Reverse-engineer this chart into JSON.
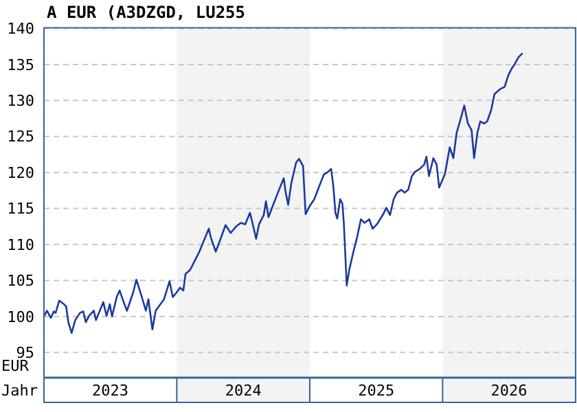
{
  "chart_data": {
    "type": "line",
    "title": "A EUR (A3DZGD, LU255",
    "xlabel": "Jahr",
    "ylabel": "EUR",
    "xlim": [
      "2023-01-01",
      "2027-01-01"
    ],
    "ylim": [
      91.5,
      140
    ],
    "xticks": [
      {
        "value": "2023-07-02",
        "label": "2023"
      },
      {
        "value": "2024-07-02",
        "label": "2024"
      },
      {
        "value": "2025-07-02",
        "label": "2025"
      },
      {
        "value": "2026-07-02",
        "label": "2026"
      }
    ],
    "yticks": [
      95,
      100,
      105,
      110,
      115,
      120,
      125,
      130,
      135,
      140
    ],
    "grid": "y",
    "bands": [
      {
        "axis": "x",
        "from": "2024-01-01",
        "to": "2025-01-01",
        "color": "#f3f3f3"
      },
      {
        "axis": "x",
        "from": "2026-01-01",
        "to": "2027-01-01",
        "color": "#f3f3f3"
      }
    ],
    "series": [
      {
        "color": "#1a3a9c",
        "x": [
          "2023-01-01",
          "2023-01-09",
          "2023-01-20",
          "2023-01-28",
          "2023-02-02",
          "2023-02-12",
          "2023-02-25",
          "2023-03-03",
          "2023-03-09",
          "2023-03-18",
          "2023-03-28",
          "2023-04-10",
          "2023-04-19",
          "2023-04-26",
          "2023-05-05",
          "2023-05-18",
          "2023-05-24",
          "2023-06-06",
          "2023-06-13",
          "2023-06-22",
          "2023-07-01",
          "2023-07-07",
          "2023-07-20",
          "2023-07-28",
          "2023-08-08",
          "2023-08-17",
          "2023-09-03",
          "2023-09-12",
          "2023-09-27",
          "2023-10-08",
          "2023-10-15",
          "2023-10-26",
          "2023-11-04",
          "2023-11-17",
          "2023-11-27",
          "2023-12-12",
          "2023-12-21",
          "2023-12-31",
          "2024-01-10",
          "2024-01-19",
          "2024-01-25",
          "2024-02-07",
          "2024-02-20",
          "2024-03-03",
          "2024-03-16",
          "2024-03-29",
          "2024-04-04",
          "2024-04-17",
          "2024-04-29",
          "2024-05-14",
          "2024-05-28",
          "2024-06-12",
          "2024-06-25",
          "2024-07-07",
          "2024-07-20",
          "2024-07-26",
          "2024-08-06",
          "2024-08-14",
          "2024-08-27",
          "2024-09-02",
          "2024-09-09",
          "2024-09-21",
          "2024-10-08",
          "2024-10-21",
          "2024-10-26",
          "2024-11-02",
          "2024-11-11",
          "2024-11-24",
          "2024-12-02",
          "2024-12-13",
          "2024-12-20",
          "2025-01-01",
          "2025-01-13",
          "2025-01-25",
          "2025-02-08",
          "2025-02-20",
          "2025-02-28",
          "2025-03-06",
          "2025-03-12",
          "2025-03-17",
          "2025-03-25",
          "2025-03-31",
          "2025-04-04",
          "2025-04-12",
          "2025-04-19",
          "2025-04-29",
          "2025-05-10",
          "2025-05-21",
          "2025-05-31",
          "2025-06-13",
          "2025-06-22",
          "2025-07-04",
          "2025-07-20",
          "2025-07-30",
          "2025-08-09",
          "2025-08-19",
          "2025-08-28",
          "2025-09-09",
          "2025-09-18",
          "2025-09-28",
          "2025-10-08",
          "2025-10-17",
          "2025-10-30",
          "2025-11-11",
          "2025-11-17",
          "2025-11-24",
          "2025-12-06",
          "2025-12-15",
          "2025-12-22",
          "2026-01-07",
          "2026-01-20",
          "2026-01-30",
          "2026-02-08",
          "2026-02-21",
          "2026-03-01",
          "2026-03-11",
          "2026-03-21",
          "2026-03-28",
          "2026-04-06",
          "2026-04-14",
          "2026-04-24",
          "2026-05-03",
          "2026-05-14",
          "2026-05-23",
          "2026-06-08",
          "2026-06-20",
          "2026-06-30",
          "2026-07-09",
          "2026-07-18",
          "2026-07-28",
          "2026-08-07"
        ],
        "values": [
          100.0,
          100.8,
          99.8,
          100.7,
          100.5,
          102.2,
          101.7,
          101.4,
          99.2,
          97.7,
          99.5,
          100.5,
          100.7,
          99.2,
          100.1,
          100.8,
          99.5,
          101.1,
          102.0,
          100.1,
          101.7,
          100.0,
          102.7,
          103.6,
          102.0,
          100.8,
          103.3,
          105.1,
          102.7,
          100.8,
          102.4,
          98.2,
          100.8,
          101.7,
          102.4,
          104.9,
          102.7,
          103.3,
          104.0,
          103.6,
          105.9,
          106.5,
          107.8,
          109.0,
          110.6,
          112.2,
          110.9,
          109.0,
          110.6,
          112.7,
          111.6,
          112.5,
          113.0,
          112.8,
          114.4,
          113.2,
          110.8,
          112.8,
          114.1,
          116.0,
          113.8,
          115.4,
          117.6,
          119.2,
          117.3,
          115.5,
          118.6,
          121.4,
          121.9,
          120.9,
          114.2,
          115.4,
          116.3,
          117.9,
          119.7,
          120.1,
          120.5,
          118.2,
          114.4,
          113.6,
          116.3,
          115.7,
          113.0,
          104.3,
          106.5,
          108.7,
          110.9,
          113.5,
          113.0,
          113.5,
          112.2,
          112.8,
          114.1,
          115.1,
          114.1,
          116.3,
          117.2,
          117.6,
          117.2,
          117.6,
          119.5,
          120.1,
          120.5,
          121.1,
          122.2,
          119.5,
          122.0,
          121.1,
          117.9,
          119.8,
          123.5,
          122.0,
          125.5,
          127.8,
          129.3,
          126.8,
          125.9,
          122.0,
          125.5,
          127.1,
          126.8,
          127.1,
          128.7,
          130.9,
          131.6,
          131.9,
          133.5,
          134.4,
          135.1,
          136.0,
          136.5
        ]
      }
    ]
  }
}
